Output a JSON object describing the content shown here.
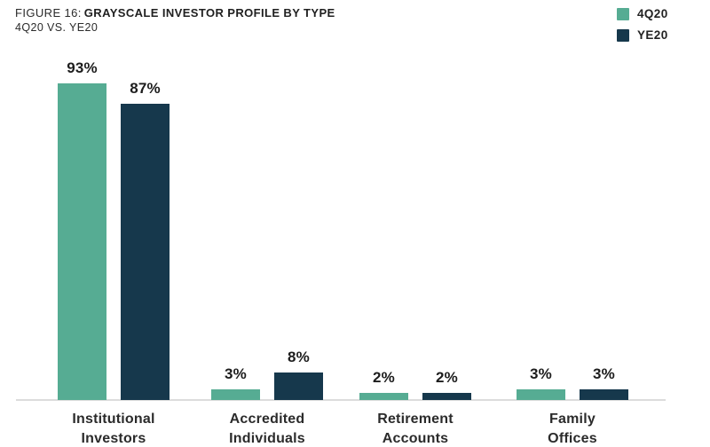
{
  "figure": {
    "label_prefix": "FIGURE 16:",
    "title": "GRAYSCALE INVESTOR PROFILE BY TYPE",
    "subtitle": "4Q20 VS. YE20"
  },
  "legend": [
    {
      "label": "4Q20",
      "color": "#56ac93"
    },
    {
      "label": "YE20",
      "color": "#16384c"
    }
  ],
  "colors": {
    "series_4q20": "#56ac93",
    "series_ye20": "#16384c",
    "axis_line": "#dcdcdc",
    "text": "#2b2b2b"
  },
  "chart_data": {
    "type": "bar",
    "categories": [
      [
        "Institutional",
        "Investors"
      ],
      [
        "Accredited",
        "Individuals"
      ],
      [
        "Retirement",
        "Accounts"
      ],
      [
        "Family",
        "Offices"
      ]
    ],
    "series": [
      {
        "name": "4Q20",
        "color": "#56ac93",
        "values": [
          93,
          3,
          2,
          3
        ]
      },
      {
        "name": "YE20",
        "color": "#16384c",
        "values": [
          87,
          8,
          2,
          3
        ]
      }
    ],
    "unit": "%",
    "ylim": [
      0,
      100
    ],
    "grid": false,
    "value_labels_shown": true,
    "legend_position": "top-right",
    "title": "FIGURE 16: GRAYSCALE INVESTOR PROFILE BY TYPE",
    "subtitle": "4Q20 VS. YE20",
    "xlabel": "",
    "ylabel": ""
  }
}
